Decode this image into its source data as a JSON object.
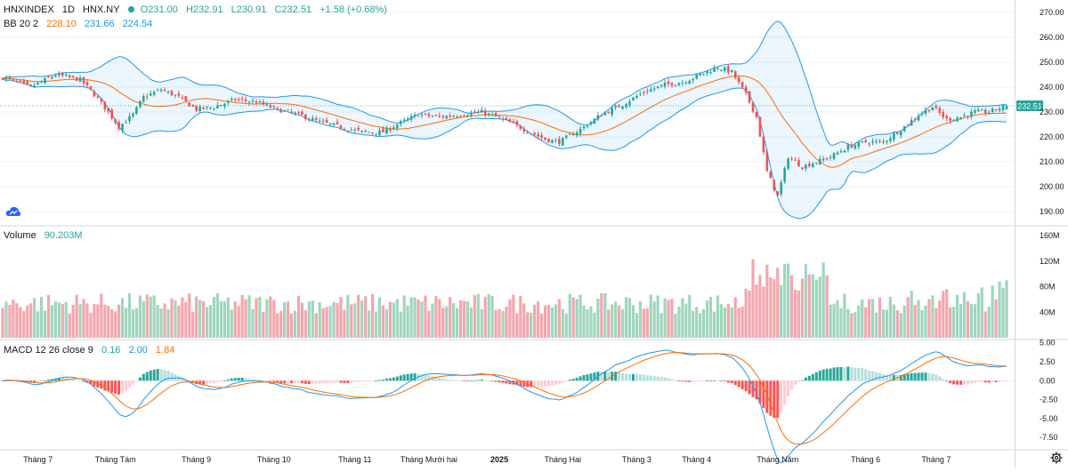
{
  "header": {
    "symbol": "HNXINDEX",
    "interval": "1D",
    "exchange": "HNX.NY",
    "open": "O231.00",
    "high": "H232.91",
    "low": "L230.91",
    "close": "C232.51",
    "change": "+1.58 (+0.68%)"
  },
  "bb_legend": {
    "name": "BB 20 2",
    "basis": "228.10",
    "upper": "231.66",
    "lower": "224.54"
  },
  "volume_legend": {
    "name": "Volume",
    "value": "90.203M"
  },
  "macd_legend": {
    "name": "MACD 12 26 close 9",
    "hist": "0.16",
    "macd": "2.00",
    "signal": "1.84"
  },
  "last_price_label": "232.51",
  "colors": {
    "up": "#26a69a",
    "down": "#ef5350",
    "upVol": "#9fd6be",
    "downVol": "#f4a6ad",
    "bbBand": "#2196f3",
    "bbBasis": "#ff6d00",
    "macd": "#2196f3",
    "signal": "#ff6d00",
    "grid": "#e0e3eb",
    "axis": "#131722"
  },
  "chart_data": [
    {
      "type": "candlestick",
      "title": "HNXINDEX 1D HNX.NY with Bollinger Bands 20 2",
      "ylim": [
        185,
        275
      ],
      "y_ticks": [
        "270.00",
        "260.00",
        "250.00",
        "240.00",
        "230.00",
        "220.00",
        "210.00",
        "200.00",
        "190.00"
      ],
      "x_labels": [
        "Tháng 7",
        "Tháng Tám",
        "Tháng 9",
        "Tháng 10",
        "Tháng 11",
        "Tháng Mười hai",
        "2025",
        "Tháng Hai",
        "Tháng 3",
        "Tháng 4",
        "Tháng Năm",
        "Tháng 6",
        "Tháng 7"
      ],
      "key_closes": [
        [
          0,
          244
        ],
        [
          8,
          240
        ],
        [
          15,
          245
        ],
        [
          22,
          243
        ],
        [
          26,
          237
        ],
        [
          30,
          230
        ],
        [
          33,
          224
        ],
        [
          37,
          229
        ],
        [
          40,
          236
        ],
        [
          45,
          239
        ],
        [
          50,
          236
        ],
        [
          55,
          231
        ],
        [
          60,
          232
        ],
        [
          66,
          235
        ],
        [
          72,
          234
        ],
        [
          78,
          231
        ],
        [
          84,
          229
        ],
        [
          90,
          226
        ],
        [
          96,
          224
        ],
        [
          102,
          222
        ],
        [
          108,
          222
        ],
        [
          112,
          225
        ],
        [
          118,
          229
        ],
        [
          124,
          228
        ],
        [
          130,
          229
        ],
        [
          136,
          230
        ],
        [
          142,
          227
        ],
        [
          148,
          223
        ],
        [
          154,
          219
        ],
        [
          158,
          218
        ],
        [
          164,
          223
        ],
        [
          170,
          229
        ],
        [
          176,
          233
        ],
        [
          182,
          238
        ],
        [
          188,
          241
        ],
        [
          193,
          242
        ],
        [
          198,
          245
        ],
        [
          203,
          248
        ],
        [
          207,
          246
        ],
        [
          211,
          237
        ],
        [
          214,
          228
        ],
        [
          217,
          206
        ],
        [
          220,
          196
        ],
        [
          223,
          212
        ],
        [
          227,
          208
        ],
        [
          231,
          210
        ],
        [
          235,
          212
        ],
        [
          240,
          216
        ],
        [
          245,
          218
        ],
        [
          250,
          218
        ],
        [
          255,
          223
        ],
        [
          260,
          229
        ],
        [
          264,
          232
        ],
        [
          268,
          227
        ],
        [
          272,
          228
        ],
        [
          276,
          230
        ],
        [
          280,
          230
        ],
        [
          284,
          232
        ]
      ],
      "last": {
        "open": 231.0,
        "high": 232.91,
        "low": 230.91,
        "close": 232.51
      },
      "bb_last": {
        "basis": 228.1,
        "upper": 231.66,
        "lower": 224.54
      }
    },
    {
      "type": "bar",
      "title": "Volume",
      "ylim": [
        0,
        170
      ],
      "unit": "M",
      "y_ticks": [
        "160M",
        "120M",
        "80M",
        "40M"
      ],
      "last_value": 90.203
    },
    {
      "type": "line",
      "title": "MACD 12 26 close 9",
      "ylim": [
        -9,
        5.2
      ],
      "y_ticks": [
        "5.00",
        "2.50",
        "0.00",
        "-2.50",
        "-5.00",
        "-7.50"
      ],
      "last": {
        "histogram": 0.16,
        "macd": 2.0,
        "signal": 1.84
      }
    }
  ]
}
